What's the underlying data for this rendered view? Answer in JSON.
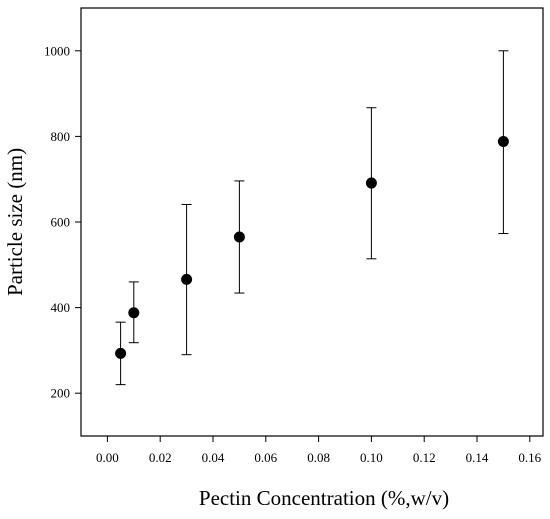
{
  "chart_data": {
    "type": "scatter",
    "xlabel": "Pectin Concentration  (%,w/v)",
    "ylabel": "Particle size  (nm)",
    "xlim": [
      -0.01,
      0.165
    ],
    "ylim": [
      100,
      1100
    ],
    "x_ticks": [
      "0.00",
      "0.02",
      "0.04",
      "0.06",
      "0.08",
      "0.10",
      "0.12",
      "0.14",
      "0.16"
    ],
    "y_ticks": [
      "200",
      "400",
      "600",
      "800",
      "1000"
    ],
    "grid": false,
    "points": [
      {
        "x": 0.005,
        "y": 293,
        "err_low": 220,
        "err_high": 366
      },
      {
        "x": 0.01,
        "y": 388,
        "err_low": 318,
        "err_high": 460
      },
      {
        "x": 0.03,
        "y": 466,
        "err_low": 290,
        "err_high": 641
      },
      {
        "x": 0.05,
        "y": 565,
        "err_low": 434,
        "err_high": 696
      },
      {
        "x": 0.1,
        "y": 691,
        "err_low": 514,
        "err_high": 867
      },
      {
        "x": 0.15,
        "y": 788,
        "err_low": 573,
        "err_high": 1000
      }
    ],
    "marker_color": "#000000"
  }
}
